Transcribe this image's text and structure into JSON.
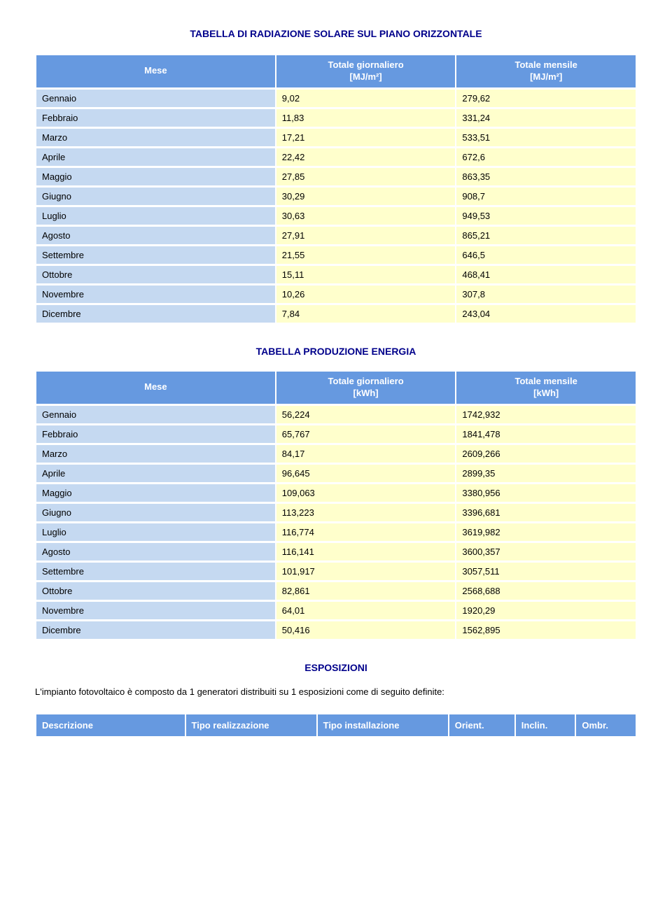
{
  "table1": {
    "title": "TABELLA DI RADIAZIONE SOLARE SUL PIANO ORIZZONTALE",
    "columns": [
      "Mese",
      "Totale giornaliero\n[MJ/m²]",
      "Totale mensile\n[MJ/m²]"
    ],
    "col_widths": [
      "40%",
      "30%",
      "30%"
    ],
    "header_bg": "#6699e0",
    "header_fg": "#ffffff",
    "label_bg": "#c5d9f1",
    "value_bg": "#ffffcc",
    "rows": [
      {
        "m": "Gennaio",
        "g": "9,02",
        "t": "279,62"
      },
      {
        "m": "Febbraio",
        "g": "11,83",
        "t": "331,24"
      },
      {
        "m": "Marzo",
        "g": "17,21",
        "t": "533,51"
      },
      {
        "m": "Aprile",
        "g": "22,42",
        "t": "672,6"
      },
      {
        "m": "Maggio",
        "g": "27,85",
        "t": "863,35"
      },
      {
        "m": "Giugno",
        "g": "30,29",
        "t": "908,7"
      },
      {
        "m": "Luglio",
        "g": "30,63",
        "t": "949,53"
      },
      {
        "m": "Agosto",
        "g": "27,91",
        "t": "865,21"
      },
      {
        "m": "Settembre",
        "g": "21,55",
        "t": "646,5"
      },
      {
        "m": "Ottobre",
        "g": "15,11",
        "t": "468,41"
      },
      {
        "m": "Novembre",
        "g": "10,26",
        "t": "307,8"
      },
      {
        "m": "Dicembre",
        "g": "7,84",
        "t": "243,04"
      }
    ]
  },
  "table2": {
    "title": "TABELLA PRODUZIONE ENERGIA",
    "columns": [
      "Mese",
      "Totale giornaliero\n[kWh]",
      "Totale mensile\n[kWh]"
    ],
    "col_widths": [
      "40%",
      "30%",
      "30%"
    ],
    "header_bg": "#6699e0",
    "header_fg": "#ffffff",
    "label_bg": "#c5d9f1",
    "value_bg": "#ffffcc",
    "rows": [
      {
        "m": "Gennaio",
        "g": "56,224",
        "t": "1742,932"
      },
      {
        "m": "Febbraio",
        "g": "65,767",
        "t": "1841,478"
      },
      {
        "m": "Marzo",
        "g": "84,17",
        "t": "2609,266"
      },
      {
        "m": "Aprile",
        "g": "96,645",
        "t": "2899,35"
      },
      {
        "m": "Maggio",
        "g": "109,063",
        "t": "3380,956"
      },
      {
        "m": "Giugno",
        "g": "113,223",
        "t": "3396,681"
      },
      {
        "m": "Luglio",
        "g": "116,774",
        "t": "3619,982"
      },
      {
        "m": "Agosto",
        "g": "116,141",
        "t": "3600,357"
      },
      {
        "m": "Settembre",
        "g": "101,917",
        "t": "3057,511"
      },
      {
        "m": "Ottobre",
        "g": "82,861",
        "t": "2568,688"
      },
      {
        "m": "Novembre",
        "g": "64,01",
        "t": "1920,29"
      },
      {
        "m": "Dicembre",
        "g": "50,416",
        "t": "1562,895"
      }
    ]
  },
  "esposizioni": {
    "title": "ESPOSIZIONI",
    "intro": "L'impianto fotovoltaico è composto da 1 generatori distribuiti su 1 esposizioni come di seguito definite:",
    "columns": [
      "Descrizione",
      "Tipo realizzazione",
      "Tipo installazione",
      "Orient.",
      "Inclin.",
      "Ombr."
    ],
    "col_widths": [
      "25%",
      "22%",
      "22%",
      "11%",
      "10%",
      "10%"
    ],
    "header_bg": "#6699e0",
    "header_fg": "#ffffff"
  }
}
